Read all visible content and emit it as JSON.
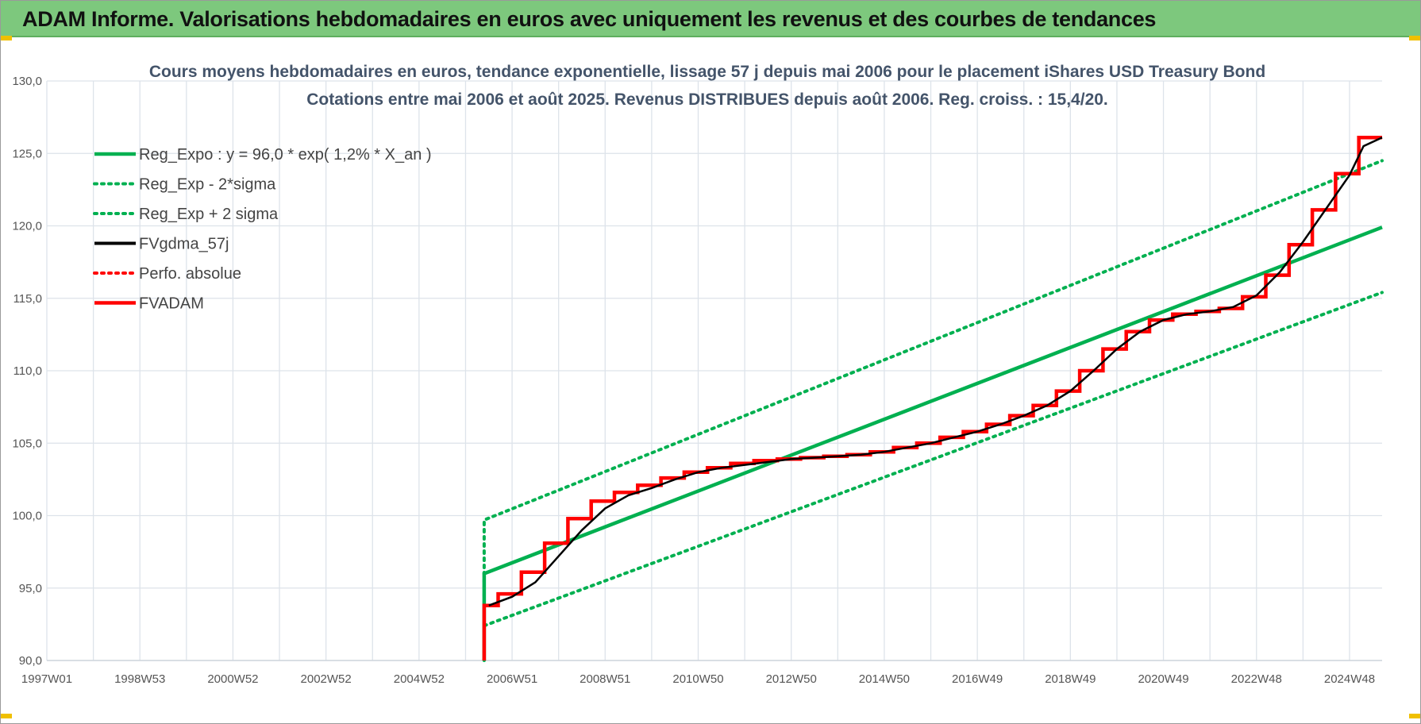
{
  "header": {
    "title": "ADAM Informe. Valorisations hebdomadaires en euros avec uniquement les revenus et des courbes de tendances"
  },
  "colors": {
    "header_bg": "#7dc87d",
    "green": "#00b050",
    "red": "#ff0000",
    "black": "#000000",
    "grid": "#dde3ea"
  },
  "chart_data": {
    "type": "line",
    "title_line1": "Cours moyens hebdomadaires en euros, tendance exponentielle, lissage 57 j depuis mai 2006 pour le placement iShares USD Treasury Bond",
    "title_line2": "Cotations entre mai 2006 et août 2025. Revenus DISTRIBUES depuis août 2006. Reg. croiss. : 15,4/20.",
    "x_range": [
      1997.0,
      2025.7
    ],
    "ylim": [
      90,
      130
    ],
    "y_ticks": [
      "90,0",
      "95,0",
      "100,0",
      "105,0",
      "110,0",
      "115,0",
      "120,0",
      "125,0",
      "130,0"
    ],
    "x_ticks": [
      {
        "label": "1997W01",
        "year": 1997.0
      },
      {
        "label": "1998W53",
        "year": 1999.0
      },
      {
        "label": "2000W52",
        "year": 2001.0
      },
      {
        "label": "2002W52",
        "year": 2003.0
      },
      {
        "label": "2004W52",
        "year": 2005.0
      },
      {
        "label": "2006W51",
        "year": 2007.0
      },
      {
        "label": "2008W51",
        "year": 2009.0
      },
      {
        "label": "2010W50",
        "year": 2011.0
      },
      {
        "label": "2012W50",
        "year": 2013.0
      },
      {
        "label": "2014W50",
        "year": 2015.0
      },
      {
        "label": "2016W49",
        "year": 2017.0
      },
      {
        "label": "2018W49",
        "year": 2019.0
      },
      {
        "label": "2020W49",
        "year": 2021.0
      },
      {
        "label": "2022W48",
        "year": 2023.0
      },
      {
        "label": "2024W48",
        "year": 2025.0
      }
    ],
    "grid": true,
    "legend_position": "top-left",
    "series": [
      {
        "name": "Reg_Expo : y = 96,0 * exp( 1,2% *  X_an )",
        "style": "solid",
        "color": "#00b050",
        "points": [
          [
            2006.4,
            90.0
          ],
          [
            2006.4,
            96.0
          ],
          [
            2025.7,
            119.9
          ]
        ]
      },
      {
        "name": "Reg_Exp - 2*sigma",
        "style": "dotted",
        "color": "#00b050",
        "points": [
          [
            2006.4,
            92.4
          ],
          [
            2025.7,
            115.4
          ]
        ]
      },
      {
        "name": "Reg_Exp + 2 sigma",
        "style": "dotted",
        "color": "#00b050",
        "points": [
          [
            2006.4,
            90.0
          ],
          [
            2006.4,
            99.7
          ],
          [
            2025.7,
            124.5
          ]
        ]
      },
      {
        "name": "FVgdma_57j",
        "style": "solid-thin",
        "color": "#000000",
        "points": [
          [
            2006.5,
            93.8
          ],
          [
            2007.0,
            94.4
          ],
          [
            2007.5,
            95.4
          ],
          [
            2008.0,
            97.2
          ],
          [
            2008.5,
            99.0
          ],
          [
            2009.0,
            100.5
          ],
          [
            2009.5,
            101.4
          ],
          [
            2010.0,
            101.9
          ],
          [
            2010.5,
            102.5
          ],
          [
            2011.0,
            103.0
          ],
          [
            2011.5,
            103.3
          ],
          [
            2012.0,
            103.5
          ],
          [
            2012.5,
            103.7
          ],
          [
            2013.0,
            103.9
          ],
          [
            2013.5,
            104.0
          ],
          [
            2014.0,
            104.1
          ],
          [
            2014.5,
            104.2
          ],
          [
            2015.0,
            104.4
          ],
          [
            2015.5,
            104.7
          ],
          [
            2016.0,
            105.0
          ],
          [
            2016.5,
            105.4
          ],
          [
            2017.0,
            105.8
          ],
          [
            2017.5,
            106.3
          ],
          [
            2018.0,
            106.9
          ],
          [
            2018.5,
            107.6
          ],
          [
            2019.0,
            108.6
          ],
          [
            2019.5,
            110.0
          ],
          [
            2020.0,
            111.5
          ],
          [
            2020.5,
            112.7
          ],
          [
            2021.0,
            113.5
          ],
          [
            2021.5,
            113.9
          ],
          [
            2022.0,
            114.1
          ],
          [
            2022.5,
            114.4
          ],
          [
            2023.0,
            115.2
          ],
          [
            2023.5,
            116.8
          ],
          [
            2024.0,
            118.9
          ],
          [
            2024.5,
            121.2
          ],
          [
            2025.0,
            123.5
          ],
          [
            2025.3,
            125.5
          ],
          [
            2025.7,
            126.1
          ]
        ]
      },
      {
        "name": "Perfo. absolue",
        "style": "dotted",
        "color": "#ff0000",
        "points": []
      },
      {
        "name": "FVADAM",
        "style": "steps",
        "color": "#ff0000",
        "points": [
          [
            2006.4,
            90.0
          ],
          [
            2006.4,
            93.8
          ],
          [
            2006.7,
            93.8
          ],
          [
            2006.7,
            94.6
          ],
          [
            2007.2,
            94.6
          ],
          [
            2007.2,
            96.1
          ],
          [
            2007.7,
            96.1
          ],
          [
            2007.7,
            98.1
          ],
          [
            2008.2,
            98.1
          ],
          [
            2008.2,
            99.8
          ],
          [
            2008.7,
            99.8
          ],
          [
            2008.7,
            101.0
          ],
          [
            2009.2,
            101.0
          ],
          [
            2009.2,
            101.6
          ],
          [
            2009.7,
            101.6
          ],
          [
            2009.7,
            102.1
          ],
          [
            2010.2,
            102.1
          ],
          [
            2010.2,
            102.6
          ],
          [
            2010.7,
            102.6
          ],
          [
            2010.7,
            103.0
          ],
          [
            2011.2,
            103.0
          ],
          [
            2011.2,
            103.3
          ],
          [
            2011.7,
            103.3
          ],
          [
            2011.7,
            103.6
          ],
          [
            2012.2,
            103.6
          ],
          [
            2012.2,
            103.8
          ],
          [
            2012.7,
            103.8
          ],
          [
            2012.7,
            103.9
          ],
          [
            2013.2,
            103.9
          ],
          [
            2013.2,
            104.0
          ],
          [
            2013.7,
            104.0
          ],
          [
            2013.7,
            104.1
          ],
          [
            2014.2,
            104.1
          ],
          [
            2014.2,
            104.2
          ],
          [
            2014.7,
            104.2
          ],
          [
            2014.7,
            104.4
          ],
          [
            2015.2,
            104.4
          ],
          [
            2015.2,
            104.7
          ],
          [
            2015.7,
            104.7
          ],
          [
            2015.7,
            105.0
          ],
          [
            2016.2,
            105.0
          ],
          [
            2016.2,
            105.4
          ],
          [
            2016.7,
            105.4
          ],
          [
            2016.7,
            105.8
          ],
          [
            2017.2,
            105.8
          ],
          [
            2017.2,
            106.3
          ],
          [
            2017.7,
            106.3
          ],
          [
            2017.7,
            106.9
          ],
          [
            2018.2,
            106.9
          ],
          [
            2018.2,
            107.6
          ],
          [
            2018.7,
            107.6
          ],
          [
            2018.7,
            108.6
          ],
          [
            2019.2,
            108.6
          ],
          [
            2019.2,
            110.0
          ],
          [
            2019.7,
            110.0
          ],
          [
            2019.7,
            111.5
          ],
          [
            2020.2,
            111.5
          ],
          [
            2020.2,
            112.7
          ],
          [
            2020.7,
            112.7
          ],
          [
            2020.7,
            113.5
          ],
          [
            2021.2,
            113.5
          ],
          [
            2021.2,
            113.9
          ],
          [
            2021.7,
            113.9
          ],
          [
            2021.7,
            114.1
          ],
          [
            2022.2,
            114.1
          ],
          [
            2022.2,
            114.3
          ],
          [
            2022.7,
            114.3
          ],
          [
            2022.7,
            115.1
          ],
          [
            2023.2,
            115.1
          ],
          [
            2023.2,
            116.6
          ],
          [
            2023.7,
            116.6
          ],
          [
            2023.7,
            118.7
          ],
          [
            2024.2,
            118.7
          ],
          [
            2024.2,
            121.1
          ],
          [
            2024.7,
            121.1
          ],
          [
            2024.7,
            123.6
          ],
          [
            2025.2,
            123.6
          ],
          [
            2025.2,
            126.1
          ],
          [
            2025.7,
            126.1
          ]
        ]
      }
    ]
  }
}
